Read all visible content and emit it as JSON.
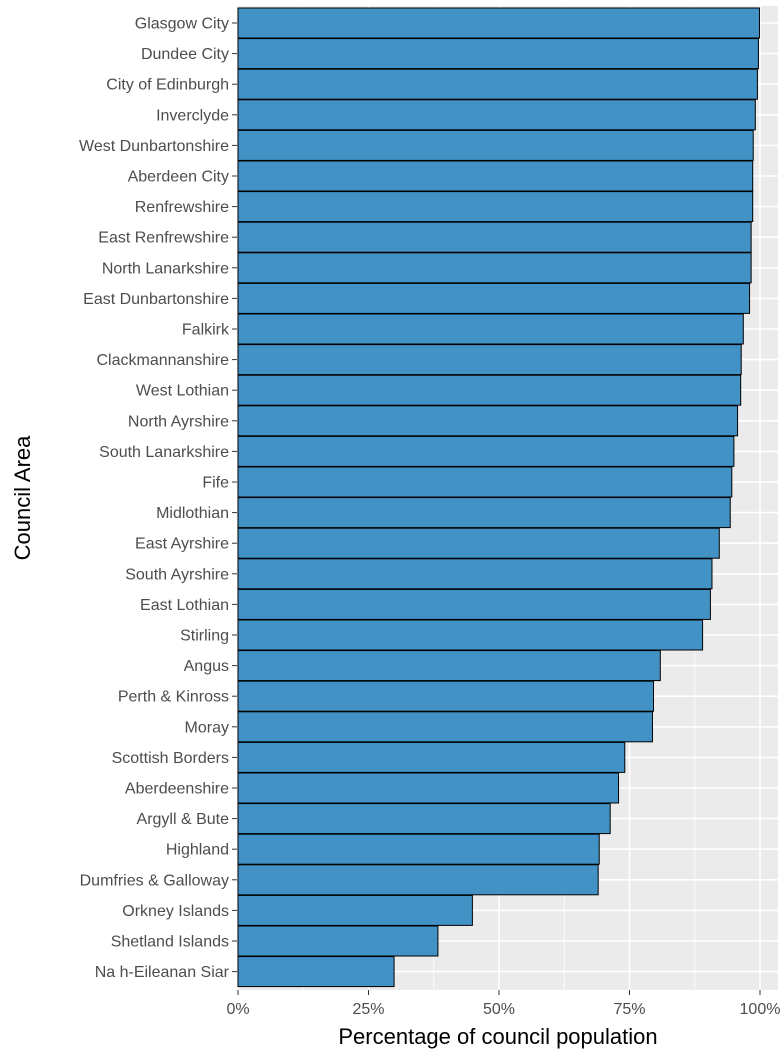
{
  "chart_data": {
    "type": "bar",
    "orientation": "horizontal",
    "ylabel": "Council Area",
    "xlabel": "Percentage of council population",
    "xlim": [
      0,
      100
    ],
    "x_ticks": [
      "0%",
      "25%",
      "50%",
      "75%",
      "100%"
    ],
    "x_tick_values": [
      0,
      25,
      50,
      75,
      100
    ],
    "grid": true,
    "colors": {
      "bar_fill": "#4292c6",
      "bar_stroke": "#000000",
      "panel_bg": "#ebebeb",
      "grid": "#ffffff"
    },
    "categories": [
      "Glasgow City",
      "Dundee City",
      "City of Edinburgh",
      "Inverclyde",
      "West Dunbartonshire",
      "Aberdeen City",
      "Renfrewshire",
      "East Renfrewshire",
      "North Lanarkshire",
      "East Dunbartonshire",
      "Falkirk",
      "Clackmannanshire",
      "West Lothian",
      "North Ayrshire",
      "South Lanarkshire",
      "Fife",
      "Midlothian",
      "East Ayrshire",
      "South Ayrshire",
      "East Lothian",
      "Stirling",
      "Angus",
      "Perth & Kinross",
      "Moray",
      "Scottish Borders",
      "Aberdeenshire",
      "Argyll & Bute",
      "Highland",
      "Dumfries & Galloway",
      "Orkney Islands",
      "Shetland Islands",
      "Na h-Eileanan Siar"
    ],
    "values": [
      99.9,
      99.7,
      99.5,
      99.1,
      98.7,
      98.6,
      98.6,
      98.3,
      98.3,
      98.0,
      96.8,
      96.4,
      96.3,
      95.7,
      95.0,
      94.6,
      94.3,
      92.2,
      90.8,
      90.5,
      89.0,
      80.9,
      79.6,
      79.4,
      74.1,
      72.9,
      71.3,
      69.2,
      69.0,
      44.9,
      38.3,
      29.9
    ]
  }
}
